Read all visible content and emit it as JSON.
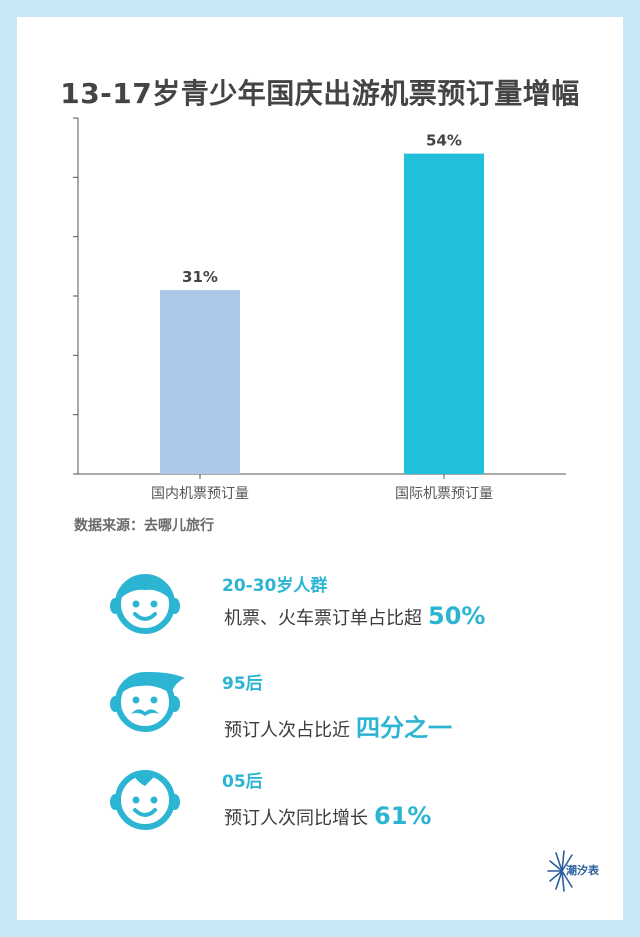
{
  "title": "13-17岁青少年国庆出游机票预订量增幅",
  "source": "数据来源：去哪儿旅行",
  "chart_data": {
    "type": "bar",
    "title": "13-17岁青少年国庆出游机票预订量增幅",
    "categories": [
      "国内机票预订量",
      "国际机票预订量"
    ],
    "values": [
      31,
      54
    ],
    "data_labels": [
      "31%",
      "54%"
    ],
    "bar_colors": [
      "#abc8e8",
      "#22bfdb"
    ],
    "xlabel": "",
    "ylabel": "",
    "ylim": [
      0,
      60
    ],
    "grid": false,
    "legend": "none"
  },
  "rows": [
    {
      "group": "20-30岁人群",
      "desc": "机票、火车票订单占比超",
      "value": "50%"
    },
    {
      "group": "95后",
      "desc": "预订人次占比近",
      "value": "四分之一"
    },
    {
      "group": "05后",
      "desc": "预订人次同比增长",
      "value": "61%"
    }
  ],
  "icons": {
    "row1": "face-icon",
    "row2": "mustache-face-icon",
    "row3": "baby-face-icon"
  },
  "logo": {
    "text": "潮汐表"
  },
  "colors": {
    "accent": "#2bb5d2",
    "background": "#c9e7f7"
  }
}
